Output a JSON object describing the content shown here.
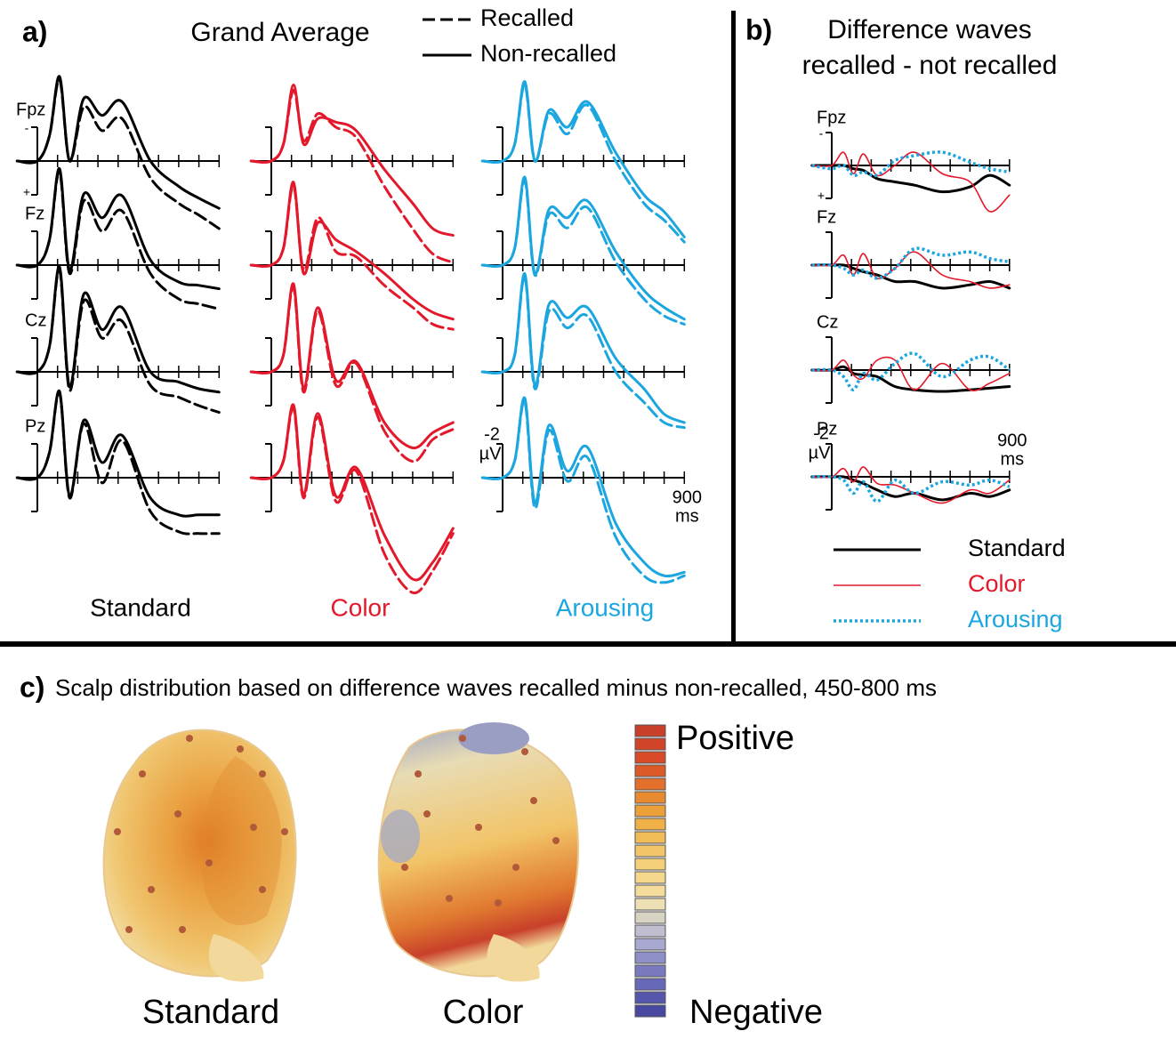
{
  "chart_data": [
    {
      "type": "erp",
      "label": "a)",
      "title": "Grand Average",
      "legend": [
        {
          "name": "Recalled",
          "style": "dashed"
        },
        {
          "name": "Non-recalled",
          "style": "solid"
        }
      ],
      "electrodes": [
        "Fpz",
        "Fz",
        "Cz",
        "Pz"
      ],
      "x": [
        -100,
        0,
        60,
        110,
        160,
        230,
        320,
        420,
        560,
        700,
        800,
        900
      ],
      "xlim": [
        -100,
        900
      ],
      "xticks": [
        0,
        100,
        200,
        300,
        400,
        500,
        600,
        700,
        800,
        900
      ],
      "x_unit": "ms",
      "ylim": [
        -2,
        2
      ],
      "yticks": [
        -2
      ],
      "y_unit": "µV",
      "y_inverted": true,
      "polarity_labels": [
        "-",
        "+"
      ],
      "columns": [
        {
          "name": "Standard",
          "color": "#000000",
          "electrodes": [
            {
              "recalled": [
                0,
                0,
                -1.5,
                -4.8,
                0,
                -3.2,
                -1.8,
                -2.5,
                1,
                2.5,
                3.2,
                4
              ],
              "non_recalled": [
                0,
                0,
                -1.5,
                -5,
                0,
                -3.7,
                -2.7,
                -3.5,
                0,
                1.5,
                2.2,
                2.8
              ]
            },
            {
              "recalled": [
                0,
                0,
                -1.5,
                -5.5,
                0.5,
                -3.8,
                -2,
                -3.2,
                0.5,
                2,
                2.3,
                2.6
              ],
              "non_recalled": [
                0,
                0,
                -1.5,
                -5.7,
                0.3,
                -4.2,
                -2.8,
                -4.1,
                -0.3,
                1,
                1.2,
                1.4
              ]
            },
            {
              "recalled": [
                0,
                0,
                -1.5,
                -6,
                1.1,
                -4.2,
                -2,
                -3,
                0.8,
                1.5,
                2,
                2.4
              ],
              "non_recalled": [
                0,
                0,
                -1.5,
                -6.2,
                0.9,
                -4.6,
                -2.5,
                -3.8,
                0,
                0.6,
                1,
                1.2
              ]
            },
            {
              "recalled": [
                0,
                0,
                -1.5,
                -5,
                1.2,
                -3.2,
                0.3,
                -2.2,
                2,
                3.2,
                3.3,
                3.3
              ],
              "non_recalled": [
                0,
                0,
                -1.5,
                -5.1,
                1.1,
                -3.4,
                -0.9,
                -2.5,
                1.2,
                2.2,
                2.2,
                2.2
              ]
            }
          ]
        },
        {
          "name": "Color",
          "color": "#e3192b",
          "electrodes": [
            {
              "recalled": [
                0,
                0,
                -1,
                -4.2,
                -1.2,
                -2.8,
                -2,
                -1.4,
                1.5,
                4,
                5.5,
                6
              ],
              "non_recalled": [
                0,
                0,
                -1,
                -4.5,
                -1,
                -2.5,
                -2.3,
                -1.8,
                0.5,
                2.5,
                4,
                4.4
              ]
            },
            {
              "recalled": [
                0,
                0,
                -1,
                -4.7,
                0.3,
                -2.8,
                -0.8,
                -0.5,
                1.2,
                2.5,
                3.5,
                3.8
              ],
              "non_recalled": [
                0,
                0,
                -1,
                -4.9,
                0.5,
                -2.5,
                -1.5,
                -0.8,
                0.5,
                2,
                2.8,
                3.2
              ]
            },
            {
              "recalled": [
                0,
                0,
                -1,
                -5,
                1.2,
                -3.6,
                0.8,
                -0.5,
                3.5,
                5.3,
                4,
                3.4
              ],
              "non_recalled": [
                0,
                0,
                -1,
                -5.2,
                1,
                -3.8,
                0.5,
                -0.6,
                3,
                4.5,
                3.6,
                3
              ]
            },
            {
              "recalled": [
                0,
                0,
                -1,
                -4.1,
                1.2,
                -3.6,
                1.4,
                -0.4,
                4.5,
                6.8,
                5.5,
                3.3
              ],
              "non_recalled": [
                0,
                0,
                -1,
                -4.3,
                1,
                -3.8,
                1.1,
                -0.6,
                3.4,
                6,
                5,
                3
              ]
            }
          ]
        },
        {
          "name": "Arousing",
          "color": "#1ba6e0",
          "electrodes": [
            {
              "recalled": [
                0,
                0,
                -1,
                -4.5,
                0,
                -2.8,
                -1.6,
                -3.3,
                0,
                2.5,
                3.5,
                4.8
              ],
              "non_recalled": [
                0,
                0,
                -1,
                -4.7,
                0,
                -3,
                -2,
                -3.5,
                -0.5,
                2,
                3,
                4.5
              ]
            },
            {
              "recalled": [
                0,
                0,
                -1,
                -5,
                0.6,
                -3,
                -2.2,
                -3.4,
                -0.2,
                2,
                3,
                3.5
              ],
              "non_recalled": [
                0,
                0,
                -1,
                -5.2,
                0.5,
                -3.3,
                -2.8,
                -3.8,
                -0.8,
                1.5,
                2.5,
                3.2
              ]
            },
            {
              "recalled": [
                0,
                0,
                -1,
                -5.6,
                1,
                -3.6,
                -2.6,
                -3.3,
                0,
                1.8,
                3,
                3.3
              ],
              "non_recalled": [
                0,
                0,
                -1,
                -5.8,
                0.8,
                -4,
                -3.2,
                -3.8,
                -0.8,
                1,
                2.5,
                3
              ]
            },
            {
              "recalled": [
                0,
                0,
                -1,
                -4.5,
                1.8,
                -2.8,
                0.2,
                -1.2,
                3.5,
                5.8,
                6.2,
                5.8
              ],
              "non_recalled": [
                0,
                0,
                -1,
                -4.7,
                1.5,
                -3.1,
                -0.4,
                -1.8,
                2.7,
                5,
                5.8,
                5.6
              ]
            }
          ]
        }
      ]
    },
    {
      "type": "erp-diff",
      "label": "b)",
      "title": [
        "Difference waves",
        "recalled - not recalled"
      ],
      "electrodes": [
        "Fpz",
        "Fz",
        "Cz",
        "Pz"
      ],
      "x": [
        -100,
        0,
        60,
        110,
        160,
        230,
        320,
        420,
        560,
        700,
        800,
        900
      ],
      "xlim": [
        -100,
        900
      ],
      "xticks": [
        0,
        100,
        200,
        300,
        400,
        500,
        600,
        700,
        800,
        900
      ],
      "x_unit": "ms",
      "ylim": [
        -2,
        2
      ],
      "yticks": [
        -2
      ],
      "y_unit": "µV",
      "y_inverted": true,
      "polarity_labels": [
        "-",
        "+"
      ],
      "series": [
        {
          "name": "Standard",
          "color": "#000000",
          "style": "solid",
          "width": 3,
          "values": [
            [
              0,
              0,
              0,
              0.2,
              0.3,
              0.8,
              1,
              1.2,
              1.6,
              1.3,
              0.6,
              1.2
            ],
            [
              0,
              0,
              0,
              0.2,
              0.4,
              0.6,
              1,
              1,
              1.4,
              1.2,
              1,
              1.4
            ],
            [
              0,
              0,
              -0.2,
              0.2,
              0.3,
              0.4,
              1,
              1.2,
              1.3,
              1.2,
              1.1,
              1
            ],
            [
              0,
              0,
              0,
              0.2,
              0.4,
              0.8,
              1.2,
              1,
              1.4,
              1,
              1.2,
              0.8
            ]
          ]
        },
        {
          "name": "Color",
          "color": "#e3192b",
          "style": "solid",
          "width": 1.6,
          "values": [
            [
              0,
              0,
              -0.8,
              0.5,
              -0.7,
              0.6,
              0,
              -0.8,
              0.5,
              1,
              2.8,
              1.8
            ],
            [
              0,
              0,
              -0.6,
              0.6,
              -0.7,
              0.8,
              0.2,
              -0.8,
              0.6,
              1,
              1.4,
              1.2
            ],
            [
              0,
              0,
              -0.6,
              0.3,
              0.5,
              -0.6,
              -0.6,
              1.2,
              -0.4,
              1.2,
              0.8,
              0.2
            ],
            [
              0,
              0,
              -0.5,
              0.3,
              -0.6,
              0.4,
              0.5,
              1,
              1.6,
              0.8,
              1,
              0.2
            ]
          ]
        },
        {
          "name": "Arousing",
          "color": "#1ba6e0",
          "style": "dotted",
          "width": 3.5,
          "values": [
            [
              0,
              0.2,
              0,
              0.6,
              0.4,
              0.6,
              -0.3,
              -0.6,
              -0.8,
              -0.2,
              0.2,
              0.4
            ],
            [
              0,
              0,
              0.2,
              0.6,
              0.3,
              0.8,
              0.2,
              -1,
              -0.6,
              -0.8,
              -0.4,
              -0.2
            ],
            [
              0,
              0,
              0.4,
              1.2,
              0.2,
              0.6,
              -0.4,
              -1,
              0.4,
              -0.6,
              -0.8,
              0
            ],
            [
              0,
              0,
              0.2,
              1,
              0.3,
              1.5,
              0.2,
              1,
              0.3,
              0.5,
              0.2,
              0.6
            ]
          ]
        }
      ]
    },
    {
      "type": "topomap",
      "label": "c)",
      "title": "Scalp distribution based on difference waves recalled minus non-recalled, 450-800 ms",
      "maps": [
        "Standard",
        "Color"
      ],
      "colorbar": {
        "top_label": "Positive",
        "bottom_label": "Negative",
        "colors": [
          "#c8402a",
          "#d0442a",
          "#d84a28",
          "#dc5a28",
          "#e2702a",
          "#e88a30",
          "#eca03a",
          "#efb048",
          "#f0bc58",
          "#f2c668",
          "#f4d07a",
          "#f5d88c",
          "#f4dc9c",
          "#ece0b4",
          "#d8d4c4",
          "#c0bed0",
          "#a8a8d0",
          "#9090c8",
          "#7a7ac0",
          "#6868b8",
          "#5656ac",
          "#4848a0"
        ]
      }
    }
  ]
}
